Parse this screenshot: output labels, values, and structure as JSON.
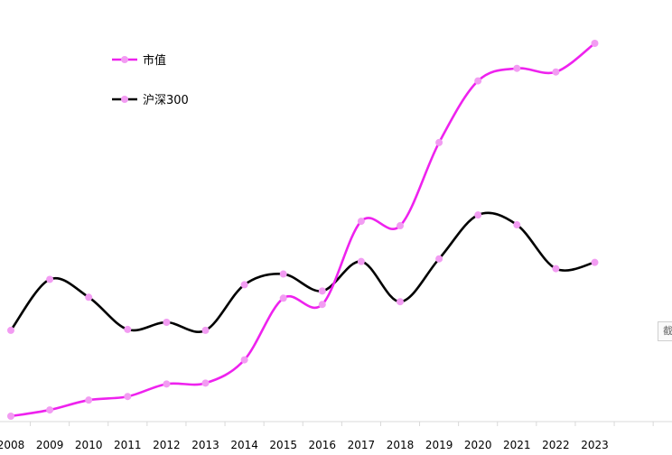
{
  "chart_data": {
    "type": "line",
    "categories": [
      "2008",
      "2009",
      "2010",
      "2011",
      "2012",
      "2013",
      "2014",
      "2015",
      "2016",
      "2017",
      "2018",
      "2019",
      "2020",
      "2021",
      "2022",
      "2023"
    ],
    "series": [
      {
        "name": "市值",
        "color": "#ee22ee",
        "values": [
          0,
          7,
          18,
          22,
          36,
          37,
          63,
          132,
          125,
          218,
          213,
          306,
          375,
          389,
          385,
          417
        ]
      },
      {
        "name": "沪深300",
        "color": "#000000",
        "values": [
          96,
          153,
          133,
          97,
          105,
          96,
          147,
          159,
          140,
          173,
          128,
          176,
          225,
          214,
          165,
          172
        ]
      }
    ],
    "marker_color": "#f29cf2",
    "xlabel": "",
    "ylabel": "",
    "ylim": [
      0,
      430
    ],
    "legend_position": "top-left",
    "grid": false
  },
  "side_tab": {
    "label": "截"
  }
}
